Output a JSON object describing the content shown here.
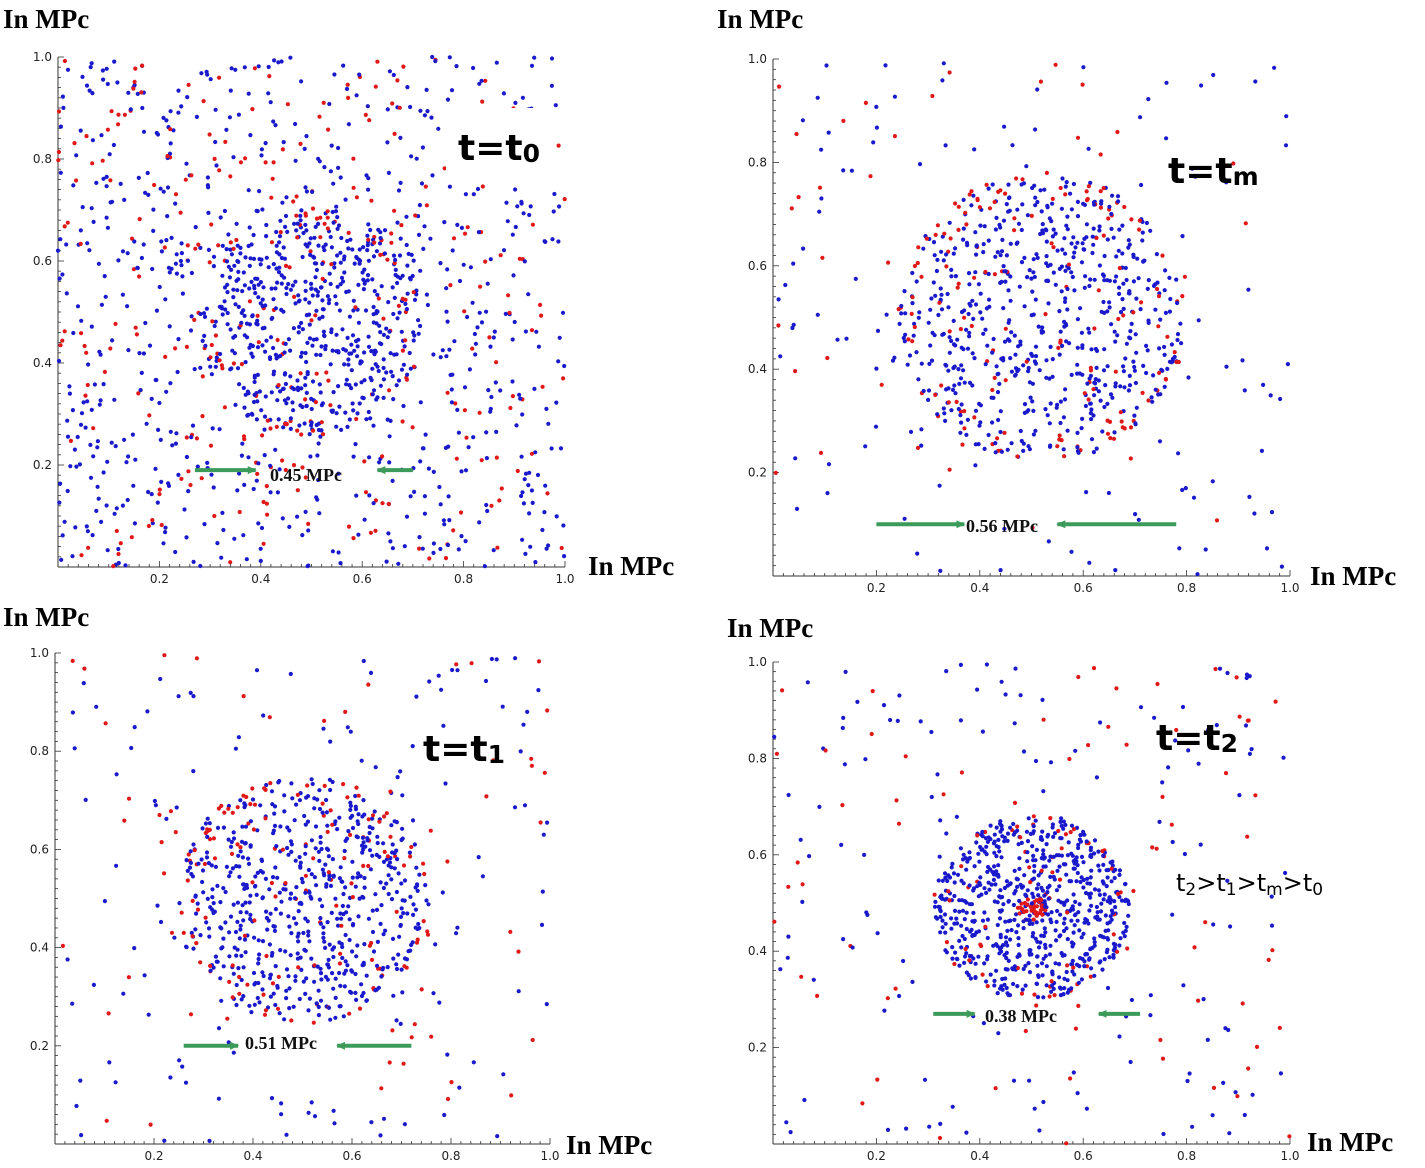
{
  "figure_note": "t2>t1>tm>t0",
  "note_parts": [
    {
      "base": "t",
      "sub": "2",
      "tail": ">"
    },
    {
      "base": "t",
      "sub": "1",
      "tail": ">"
    },
    {
      "base": "t",
      "sub": "m",
      "tail": ">"
    },
    {
      "base": "t",
      "sub": "0",
      "tail": ""
    }
  ],
  "colors": {
    "blue": "#1a1acc",
    "red": "#e01818",
    "arrow": "#3c9a5a",
    "axis": "#333333"
  },
  "chart_data": [
    {
      "type": "scatter",
      "time_label": {
        "base": "t=t",
        "sub": "0"
      },
      "xlabel": "In MPc",
      "ylabel": "In MPc",
      "xlim": [
        0,
        1
      ],
      "ylim": [
        0,
        1
      ],
      "xticks": [
        "0.2",
        "0.4",
        "0.6",
        "0.8",
        "1.0"
      ],
      "yticks": [
        "0.2",
        "0.4",
        "0.6",
        "0.8",
        "1.0"
      ],
      "scale_label": "0.45 MPc",
      "scale_arrows": {
        "left_from": 0.27,
        "left_to": 0.39,
        "right_from": 0.7,
        "right_to": 0.63,
        "y": 0.19
      },
      "cluster": {
        "cx": 0.5,
        "cy": 0.48,
        "r": 0.225,
        "n": 650,
        "red_fraction": 0.15,
        "core_r": 0,
        "core_n": 0
      },
      "field": {
        "n": 1050,
        "red_fraction": 0.27
      },
      "series": [
        {
          "name": "blue particles",
          "color": "#1a1acc"
        },
        {
          "name": "red particles",
          "color": "#e01818"
        }
      ]
    },
    {
      "type": "scatter",
      "time_label": {
        "base": "t=t",
        "sub": "m"
      },
      "xlabel": "In MPc",
      "ylabel": "In MPc",
      "xlim": [
        0,
        1
      ],
      "ylim": [
        0,
        1
      ],
      "xticks": [
        "0.2",
        "0.4",
        "0.6",
        "0.8",
        "1.0"
      ],
      "yticks": [
        "0.2",
        "0.4",
        "0.6",
        "0.8",
        "1.0"
      ],
      "scale_label": "0.56 MPc",
      "scale_arrows": {
        "left_from": 0.2,
        "left_to": 0.37,
        "right_from": 0.78,
        "right_to": 0.55,
        "y": 0.1
      },
      "cluster": {
        "cx": 0.52,
        "cy": 0.5,
        "r": 0.28,
        "n": 760,
        "red_fraction": 0.18,
        "core_r": 0,
        "core_n": 0
      },
      "field": {
        "n": 190,
        "red_fraction": 0.3
      },
      "series": [
        {
          "name": "blue particles",
          "color": "#1a1acc"
        },
        {
          "name": "red particles",
          "color": "#e01818"
        }
      ]
    },
    {
      "type": "scatter",
      "time_label": {
        "base": "t=t",
        "sub": "1"
      },
      "xlabel": "In MPc",
      "ylabel": "In MPc",
      "xlim": [
        0,
        1
      ],
      "ylim": [
        0,
        1
      ],
      "xticks": [
        "0.2",
        "0.4",
        "0.6",
        "0.8",
        "1.0"
      ],
      "yticks": [
        "0.2",
        "0.4",
        "0.6",
        "0.8",
        "1.0"
      ],
      "scale_label": "0.51 MPc",
      "scale_arrows": {
        "left_from": 0.26,
        "left_to": 0.37,
        "right_from": 0.72,
        "right_to": 0.57,
        "y": 0.2
      },
      "cluster": {
        "cx": 0.5,
        "cy": 0.5,
        "r": 0.255,
        "n": 720,
        "red_fraction": 0.15,
        "core_r": 0,
        "core_n": 0
      },
      "field": {
        "n": 230,
        "red_fraction": 0.3
      },
      "series": [
        {
          "name": "blue particles",
          "color": "#1a1acc"
        },
        {
          "name": "red particles",
          "color": "#e01818"
        }
      ]
    },
    {
      "type": "scatter",
      "time_label": {
        "base": "t=t",
        "sub": "2"
      },
      "xlabel": "In MPc",
      "ylabel": "In MPc",
      "xlim": [
        0,
        1
      ],
      "ylim": [
        0,
        1
      ],
      "xticks": [
        "0.2",
        "0.4",
        "0.6",
        "0.8",
        "1.0"
      ],
      "yticks": [
        "0.2",
        "0.4",
        "0.6",
        "0.8",
        "1.0"
      ],
      "scale_label": "0.38 MPc",
      "scale_arrows": {
        "left_from": 0.31,
        "left_to": 0.39,
        "right_from": 0.71,
        "right_to": 0.63,
        "y": 0.27
      },
      "cluster": {
        "cx": 0.5,
        "cy": 0.49,
        "r": 0.19,
        "n": 720,
        "red_fraction": 0.08,
        "core_r": 0.028,
        "core_n": 45
      },
      "field": {
        "n": 230,
        "red_fraction": 0.3
      },
      "series": [
        {
          "name": "blue particles",
          "color": "#1a1acc"
        },
        {
          "name": "red particles",
          "color": "#e01818"
        }
      ]
    }
  ]
}
